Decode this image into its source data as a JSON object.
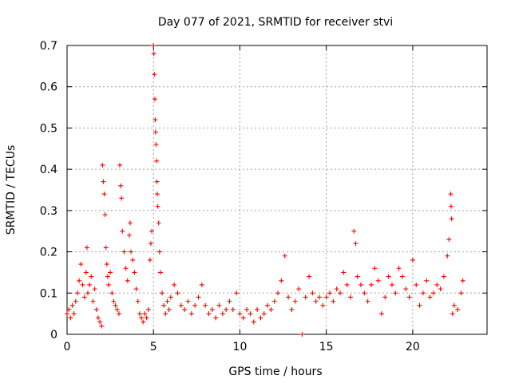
{
  "chart_data": {
    "type": "scatter",
    "title": "Day 077 of 2021, SRMTID for receiver stvi",
    "xlabel": "GPS time / hours",
    "ylabel": "SRMTID / TECUs",
    "xlim": [
      0,
      24.3
    ],
    "ylim": [
      0,
      0.7
    ],
    "xticks": [
      0,
      5,
      10,
      15,
      20
    ],
    "xtick_labels": [
      "0",
      "5",
      "10",
      "15",
      "20"
    ],
    "yticks": [
      0,
      0.1,
      0.2,
      0.3,
      0.4,
      0.5,
      0.6,
      0.7
    ],
    "ytick_labels": [
      "0",
      "0.1",
      "0.2",
      "0.3",
      "0.4",
      "0.5",
      "0.6",
      "0.7"
    ],
    "grid": true,
    "marker": "+",
    "color": "#ff0000",
    "series": [
      {
        "name": "SRMTID",
        "points": [
          [
            0.0,
            0.05
          ],
          [
            0.1,
            0.06
          ],
          [
            0.2,
            0.04
          ],
          [
            0.3,
            0.07
          ],
          [
            0.4,
            0.05
          ],
          [
            0.5,
            0.08
          ],
          [
            0.6,
            0.1
          ],
          [
            0.7,
            0.13
          ],
          [
            0.8,
            0.17
          ],
          [
            0.9,
            0.12
          ],
          [
            1.0,
            0.09
          ],
          [
            1.1,
            0.15
          ],
          [
            1.15,
            0.21
          ],
          [
            1.2,
            0.1
          ],
          [
            1.3,
            0.12
          ],
          [
            1.4,
            0.14
          ],
          [
            1.5,
            0.08
          ],
          [
            1.6,
            0.11
          ],
          [
            1.7,
            0.06
          ],
          [
            1.8,
            0.04
          ],
          [
            1.9,
            0.03
          ],
          [
            2.0,
            0.02
          ],
          [
            2.05,
            0.41
          ],
          [
            2.1,
            0.37
          ],
          [
            2.15,
            0.34
          ],
          [
            2.2,
            0.29
          ],
          [
            2.25,
            0.21
          ],
          [
            2.3,
            0.17
          ],
          [
            2.35,
            0.14
          ],
          [
            2.4,
            0.12
          ],
          [
            2.5,
            0.15
          ],
          [
            2.6,
            0.1
          ],
          [
            2.7,
            0.08
          ],
          [
            2.8,
            0.07
          ],
          [
            2.9,
            0.06
          ],
          [
            3.0,
            0.05
          ],
          [
            3.05,
            0.41
          ],
          [
            3.1,
            0.36
          ],
          [
            3.15,
            0.33
          ],
          [
            3.2,
            0.25
          ],
          [
            3.3,
            0.2
          ],
          [
            3.4,
            0.16
          ],
          [
            3.5,
            0.13
          ],
          [
            3.6,
            0.24
          ],
          [
            3.65,
            0.27
          ],
          [
            3.7,
            0.2
          ],
          [
            3.8,
            0.18
          ],
          [
            3.9,
            0.15
          ],
          [
            4.0,
            0.11
          ],
          [
            4.1,
            0.08
          ],
          [
            4.2,
            0.05
          ],
          [
            4.3,
            0.04
          ],
          [
            4.4,
            0.03
          ],
          [
            4.5,
            0.05
          ],
          [
            4.6,
            0.04
          ],
          [
            4.7,
            0.06
          ],
          [
            4.8,
            0.18
          ],
          [
            4.85,
            0.22
          ],
          [
            4.9,
            0.25
          ],
          [
            5.0,
            0.7
          ],
          [
            5.02,
            0.68
          ],
          [
            5.05,
            0.63
          ],
          [
            5.08,
            0.57
          ],
          [
            5.1,
            0.52
          ],
          [
            5.12,
            0.49
          ],
          [
            5.15,
            0.46
          ],
          [
            5.18,
            0.42
          ],
          [
            5.2,
            0.37
          ],
          [
            5.22,
            0.34
          ],
          [
            5.25,
            0.31
          ],
          [
            5.3,
            0.27
          ],
          [
            5.35,
            0.2
          ],
          [
            5.4,
            0.15
          ],
          [
            5.5,
            0.1
          ],
          [
            5.6,
            0.07
          ],
          [
            5.7,
            0.05
          ],
          [
            5.8,
            0.08
          ],
          [
            5.9,
            0.06
          ],
          [
            6.0,
            0.09
          ],
          [
            6.2,
            0.12
          ],
          [
            6.4,
            0.1
          ],
          [
            6.6,
            0.07
          ],
          [
            6.8,
            0.06
          ],
          [
            7.0,
            0.08
          ],
          [
            7.2,
            0.05
          ],
          [
            7.4,
            0.07
          ],
          [
            7.6,
            0.09
          ],
          [
            7.8,
            0.12
          ],
          [
            8.0,
            0.07
          ],
          [
            8.2,
            0.05
          ],
          [
            8.4,
            0.06
          ],
          [
            8.6,
            0.04
          ],
          [
            8.8,
            0.07
          ],
          [
            9.0,
            0.05
          ],
          [
            9.2,
            0.06
          ],
          [
            9.4,
            0.08
          ],
          [
            9.6,
            0.06
          ],
          [
            9.8,
            0.1
          ],
          [
            10.0,
            0.05
          ],
          [
            10.2,
            0.04
          ],
          [
            10.4,
            0.06
          ],
          [
            10.6,
            0.05
          ],
          [
            10.8,
            0.03
          ],
          [
            11.0,
            0.06
          ],
          [
            11.2,
            0.04
          ],
          [
            11.4,
            0.05
          ],
          [
            11.6,
            0.07
          ],
          [
            11.8,
            0.06
          ],
          [
            12.0,
            0.08
          ],
          [
            12.2,
            0.1
          ],
          [
            12.4,
            0.13
          ],
          [
            12.6,
            0.19
          ],
          [
            12.8,
            0.09
          ],
          [
            13.0,
            0.06
          ],
          [
            13.2,
            0.08
          ],
          [
            13.4,
            0.11
          ],
          [
            13.6,
            0.0
          ],
          [
            13.8,
            0.09
          ],
          [
            14.0,
            0.14
          ],
          [
            14.2,
            0.1
          ],
          [
            14.4,
            0.08
          ],
          [
            14.6,
            0.09
          ],
          [
            14.8,
            0.07
          ],
          [
            15.0,
            0.09
          ],
          [
            15.2,
            0.1
          ],
          [
            15.4,
            0.08
          ],
          [
            15.6,
            0.11
          ],
          [
            15.8,
            0.1
          ],
          [
            16.0,
            0.15
          ],
          [
            16.2,
            0.12
          ],
          [
            16.4,
            0.09
          ],
          [
            16.6,
            0.25
          ],
          [
            16.7,
            0.22
          ],
          [
            16.8,
            0.14
          ],
          [
            17.0,
            0.12
          ],
          [
            17.2,
            0.1
          ],
          [
            17.4,
            0.08
          ],
          [
            17.6,
            0.12
          ],
          [
            17.8,
            0.16
          ],
          [
            18.0,
            0.13
          ],
          [
            18.2,
            0.05
          ],
          [
            18.4,
            0.09
          ],
          [
            18.6,
            0.14
          ],
          [
            18.8,
            0.12
          ],
          [
            19.0,
            0.1
          ],
          [
            19.2,
            0.16
          ],
          [
            19.4,
            0.14
          ],
          [
            19.6,
            0.11
          ],
          [
            19.8,
            0.09
          ],
          [
            20.0,
            0.18
          ],
          [
            20.2,
            0.12
          ],
          [
            20.4,
            0.07
          ],
          [
            20.6,
            0.1
          ],
          [
            20.8,
            0.13
          ],
          [
            21.0,
            0.09
          ],
          [
            21.2,
            0.1
          ],
          [
            21.4,
            0.12
          ],
          [
            21.6,
            0.11
          ],
          [
            21.8,
            0.14
          ],
          [
            22.0,
            0.19
          ],
          [
            22.1,
            0.23
          ],
          [
            22.2,
            0.34
          ],
          [
            22.22,
            0.31
          ],
          [
            22.25,
            0.28
          ],
          [
            22.3,
            0.05
          ],
          [
            22.4,
            0.07
          ],
          [
            22.6,
            0.06
          ],
          [
            22.8,
            0.1
          ],
          [
            22.9,
            0.13
          ]
        ]
      }
    ]
  }
}
